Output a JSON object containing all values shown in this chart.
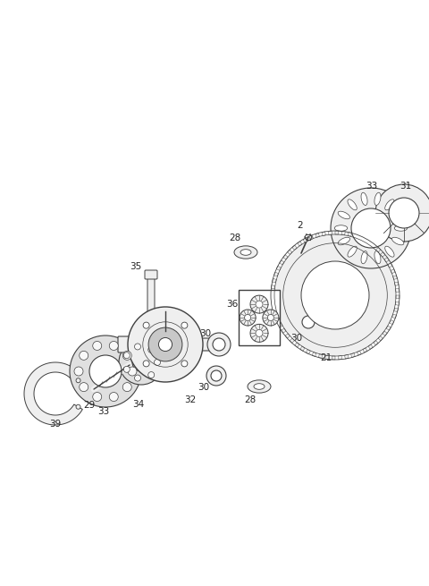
{
  "bg_color": "#ffffff",
  "fig_width": 4.8,
  "fig_height": 6.55,
  "dpi": 100,
  "ec": "#404040",
  "lw_main": 0.8,
  "lw_thin": 0.5
}
